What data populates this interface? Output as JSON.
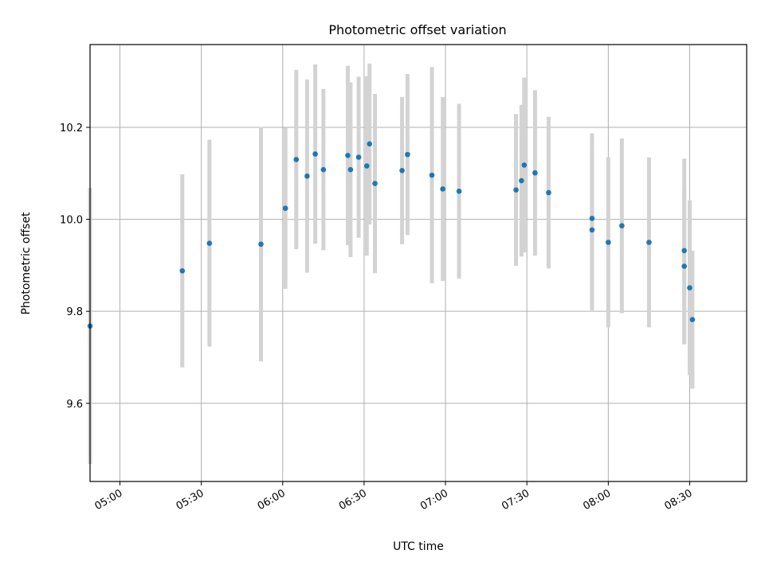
{
  "chart_data": {
    "type": "scatter",
    "title": "Photometric offset variation",
    "xlabel": "UTC time",
    "ylabel": "Photometric offset",
    "xlim": [
      "04:49",
      "08:51"
    ],
    "ylim": [
      9.43,
      10.38
    ],
    "x_ticks": [
      "05:00",
      "05:30",
      "06:00",
      "06:30",
      "07:00",
      "07:30",
      "08:00",
      "08:30"
    ],
    "y_ticks": [
      9.6,
      9.8,
      10.0,
      10.2
    ],
    "grid": true,
    "marker_color": "#1f77b4",
    "errorbar_color": "#d3d3d3",
    "points": [
      {
        "x": "04:49",
        "y": 9.768,
        "err": 0.3
      },
      {
        "x": "05:23",
        "y": 9.888,
        "err": 0.21
      },
      {
        "x": "05:33",
        "y": 9.948,
        "err": 0.225
      },
      {
        "x": "05:52",
        "y": 9.946,
        "err": 0.255
      },
      {
        "x": "06:01",
        "y": 10.024,
        "err": 0.175
      },
      {
        "x": "06:05",
        "y": 10.13,
        "err": 0.195
      },
      {
        "x": "06:09",
        "y": 10.094,
        "err": 0.21
      },
      {
        "x": "06:12",
        "y": 10.142,
        "err": 0.195
      },
      {
        "x": "06:15",
        "y": 10.108,
        "err": 0.175
      },
      {
        "x": "06:24",
        "y": 10.139,
        "err": 0.195
      },
      {
        "x": "06:25",
        "y": 10.108,
        "err": 0.19
      },
      {
        "x": "06:28",
        "y": 10.135,
        "err": 0.175
      },
      {
        "x": "06:31",
        "y": 10.116,
        "err": 0.195
      },
      {
        "x": "06:32",
        "y": 10.164,
        "err": 0.175
      },
      {
        "x": "06:34",
        "y": 10.078,
        "err": 0.195
      },
      {
        "x": "06:44",
        "y": 10.106,
        "err": 0.16
      },
      {
        "x": "06:46",
        "y": 10.141,
        "err": 0.175
      },
      {
        "x": "06:55",
        "y": 10.096,
        "err": 0.235
      },
      {
        "x": "06:59",
        "y": 10.066,
        "err": 0.2
      },
      {
        "x": "07:05",
        "y": 10.061,
        "err": 0.19
      },
      {
        "x": "07:26",
        "y": 10.064,
        "err": 0.165
      },
      {
        "x": "07:28",
        "y": 10.084,
        "err": 0.165
      },
      {
        "x": "07:29",
        "y": 10.118,
        "err": 0.19
      },
      {
        "x": "07:33",
        "y": 10.101,
        "err": 0.18
      },
      {
        "x": "07:38",
        "y": 10.058,
        "err": 0.165
      },
      {
        "x": "07:54",
        "y": 9.977,
        "err": 0.175
      },
      {
        "x": "07:54",
        "y": 10.002,
        "err": 0.185
      },
      {
        "x": "08:00",
        "y": 9.95,
        "err": 0.185
      },
      {
        "x": "08:05",
        "y": 9.986,
        "err": 0.19
      },
      {
        "x": "08:15",
        "y": 9.95,
        "err": 0.185
      },
      {
        "x": "08:28",
        "y": 9.932,
        "err": 0.2
      },
      {
        "x": "08:28",
        "y": 9.898,
        "err": 0.17
      },
      {
        "x": "08:30",
        "y": 9.851,
        "err": 0.19
      },
      {
        "x": "08:31",
        "y": 9.782,
        "err": 0.15
      }
    ]
  }
}
